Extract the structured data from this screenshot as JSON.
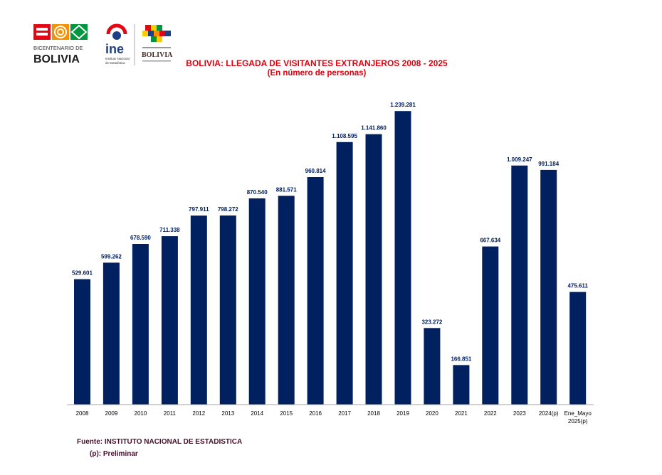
{
  "header": {
    "logo_bicentenario_line1": "BICENTENARIO DE",
    "logo_bicentenario_line2": "BOLIVIA",
    "logo_ine": "ine",
    "logo_ine_sub1": "Instituto Nacional",
    "logo_ine_sub2": "de Estadística",
    "logo_ministerio_word": "BOLIVIA"
  },
  "chart_data": {
    "type": "bar",
    "title": "BOLIVIA: LLEGADA DE VISITANTES EXTRANJEROS 2008 - 2025",
    "subtitle": "(En número de personas)",
    "categories": [
      "2008",
      "2009",
      "2010",
      "2011",
      "2012",
      "2013",
      "2014",
      "2015",
      "2016",
      "2017",
      "2018",
      "2019",
      "2020",
      "2021",
      "2022",
      "2023",
      "2024(p)",
      "Ene_Mayo\n2025(p)"
    ],
    "values": [
      529601,
      599262,
      678590,
      711338,
      797911,
      798272,
      870540,
      881571,
      960814,
      1108595,
      1141860,
      1239281,
      323272,
      166851,
      667634,
      1009247,
      991184,
      475611
    ],
    "data_labels": [
      "529.601",
      "599.262",
      "678.590",
      "711.338",
      "797.911",
      "798.272",
      "870.540",
      "881.571",
      "960.814",
      "1.108.595",
      "1.141.860",
      "1.239.281",
      "323.272",
      "166.851",
      "667.634",
      "1.009.247",
      "991.184",
      "475.611"
    ],
    "ylim": [
      0,
      1300000
    ],
    "grid": false,
    "bar_color": "#002060",
    "label_color": "#002060"
  },
  "footer": {
    "source": "Fuente: INSTITUTO NACIONAL DE ESTADISTICA",
    "note": "(p): Preliminar"
  }
}
